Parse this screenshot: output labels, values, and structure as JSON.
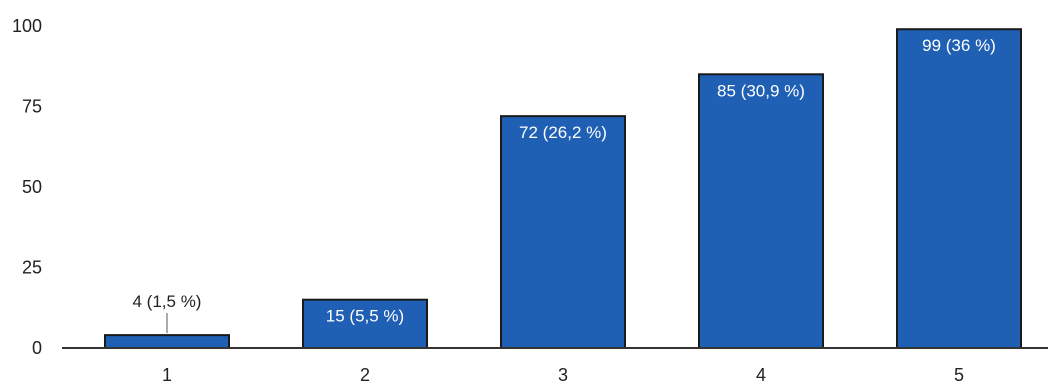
{
  "chart_data": {
    "type": "bar",
    "categories": [
      "1",
      "2",
      "3",
      "4",
      "5"
    ],
    "values": [
      4,
      15,
      72,
      85,
      99
    ],
    "data_labels": [
      "4 (1,5 %)",
      "15 (5,5 %)",
      "72 (26,2 %)",
      "85 (30,9 %)",
      "99 (36 %)"
    ],
    "yticks": [
      "0",
      "25",
      "50",
      "75",
      "100"
    ],
    "ytick_values": [
      0,
      25,
      50,
      75,
      100
    ],
    "ylim": [
      0,
      100
    ],
    "grid": false,
    "legend": "none",
    "title": "",
    "xlabel": "",
    "ylabel": "",
    "colors": {
      "bar_fill": "#1f5fb4",
      "bar_edge": "#1a1a1a",
      "axis": "#333333",
      "label_inside": "#ffffff",
      "label_outside": "#222222"
    }
  }
}
